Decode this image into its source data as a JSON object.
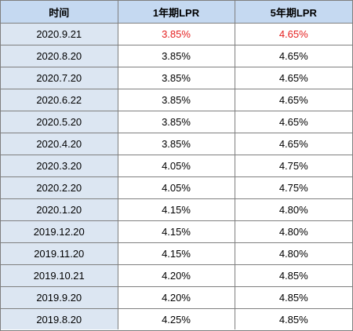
{
  "table": {
    "headers": [
      "时间",
      "1年期LPR",
      "5年期LPR"
    ],
    "rows": [
      {
        "date": "2020.9.21",
        "lpr_1y": "3.85%",
        "lpr_5y": "4.65%",
        "highlight": true
      },
      {
        "date": "2020.8.20",
        "lpr_1y": "3.85%",
        "lpr_5y": "4.65%"
      },
      {
        "date": "2020.7.20",
        "lpr_1y": "3.85%",
        "lpr_5y": "4.65%"
      },
      {
        "date": "2020.6.22",
        "lpr_1y": "3.85%",
        "lpr_5y": "4.65%"
      },
      {
        "date": "2020.5.20",
        "lpr_1y": "3.85%",
        "lpr_5y": "4.65%"
      },
      {
        "date": "2020.4.20",
        "lpr_1y": "3.85%",
        "lpr_5y": "4.65%"
      },
      {
        "date": "2020.3.20",
        "lpr_1y": "4.05%",
        "lpr_5y": "4.75%"
      },
      {
        "date": "2020.2.20",
        "lpr_1y": "4.05%",
        "lpr_5y": "4.75%"
      },
      {
        "date": "2020.1.20",
        "lpr_1y": "4.15%",
        "lpr_5y": "4.80%"
      },
      {
        "date": "2019.12.20",
        "lpr_1y": "4.15%",
        "lpr_5y": "4.80%"
      },
      {
        "date": "2019.11.20",
        "lpr_1y": "4.15%",
        "lpr_5y": "4.80%"
      },
      {
        "date": "2019.10.21",
        "lpr_1y": "4.20%",
        "lpr_5y": "4.85%"
      },
      {
        "date": "2019.9.20",
        "lpr_1y": "4.20%",
        "lpr_5y": "4.85%"
      },
      {
        "date": "2019.8.20",
        "lpr_1y": "4.25%",
        "lpr_5y": "4.85%"
      }
    ]
  },
  "colors": {
    "header_bg": "#c5d9f1",
    "date_col_bg": "#dce6f2",
    "highlight_text": "#e52020",
    "grid": "#7f7f7f"
  }
}
